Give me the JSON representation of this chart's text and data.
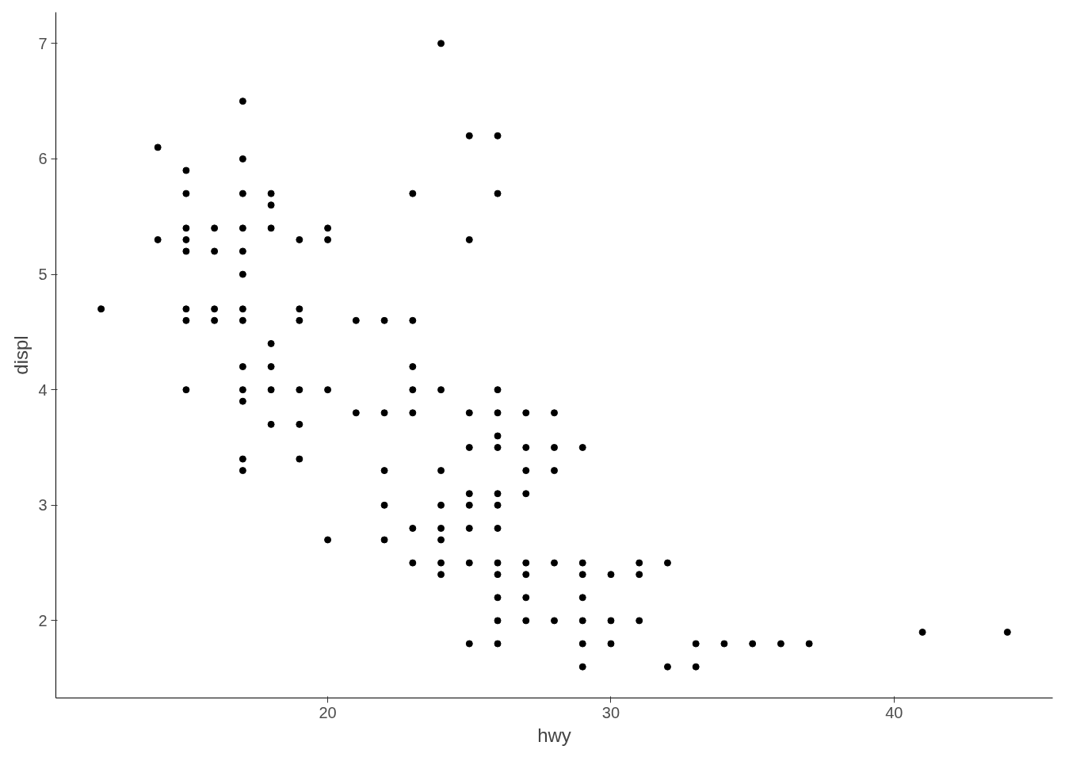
{
  "chart_data": {
    "type": "scatter",
    "xlabel": "hwy",
    "ylabel": "displ",
    "marker": "circle",
    "grid": false,
    "xlim": [
      10.4,
      45.6
    ],
    "ylim": [
      1.33,
      7.27
    ],
    "xticks": [
      20,
      30,
      40
    ],
    "yticks": [
      2,
      3,
      4,
      5,
      6,
      7
    ],
    "series": [
      {
        "color": "#000000",
        "x": [
          12,
          14,
          14,
          15,
          15,
          15,
          15,
          15,
          15,
          15,
          15,
          16,
          16,
          16,
          16,
          17,
          17,
          17,
          17,
          17,
          17,
          17,
          17,
          17,
          17,
          17,
          17,
          17,
          18,
          18,
          18,
          18,
          18,
          18,
          18,
          19,
          19,
          19,
          19,
          19,
          19,
          20,
          20,
          20,
          20,
          21,
          21,
          22,
          22,
          22,
          22,
          22,
          23,
          23,
          23,
          23,
          23,
          23,
          23,
          24,
          24,
          24,
          24,
          24,
          24,
          24,
          24,
          25,
          25,
          25,
          25,
          25,
          25,
          25,
          25,
          25,
          26,
          26,
          26,
          26,
          26,
          26,
          26,
          26,
          26,
          26,
          26,
          26,
          26,
          26,
          27,
          27,
          27,
          27,
          27,
          27,
          27,
          27,
          28,
          28,
          28,
          28,
          28,
          29,
          29,
          29,
          29,
          29,
          29,
          29,
          30,
          30,
          30,
          31,
          31,
          31,
          32,
          32,
          33,
          33,
          34,
          35,
          36,
          37,
          41,
          44
        ],
        "values": [
          4.7,
          6.1,
          5.3,
          5.9,
          5.7,
          5.4,
          5.3,
          5.2,
          4.7,
          4.6,
          4.0,
          5.4,
          5.2,
          4.7,
          4.6,
          6.5,
          6.0,
          5.7,
          5.4,
          5.2,
          5.0,
          4.7,
          4.6,
          4.2,
          4.0,
          3.9,
          3.4,
          3.3,
          5.7,
          5.6,
          5.4,
          4.4,
          4.2,
          4.0,
          3.7,
          5.3,
          4.7,
          4.6,
          4.0,
          3.7,
          3.4,
          5.4,
          5.3,
          4.0,
          2.7,
          4.6,
          3.8,
          4.6,
          3.8,
          3.3,
          3.0,
          2.7,
          5.7,
          4.6,
          4.2,
          4.0,
          3.8,
          2.8,
          2.5,
          7.0,
          4.0,
          3.3,
          3.0,
          2.8,
          2.7,
          2.5,
          2.4,
          6.2,
          5.3,
          3.8,
          3.5,
          3.1,
          3.0,
          2.8,
          2.5,
          1.8,
          6.2,
          5.7,
          4.0,
          3.8,
          3.6,
          3.5,
          3.1,
          3.0,
          2.8,
          2.5,
          2.4,
          2.2,
          2.0,
          1.8,
          3.8,
          3.5,
          3.3,
          3.1,
          2.5,
          2.4,
          2.2,
          2.0,
          3.8,
          3.5,
          3.3,
          2.5,
          2.0,
          3.5,
          2.5,
          2.4,
          2.2,
          2.0,
          1.8,
          1.6,
          2.4,
          2.0,
          1.8,
          2.5,
          2.4,
          2.0,
          2.5,
          1.6,
          1.8,
          1.6,
          1.8,
          1.8,
          1.8,
          1.8,
          1.9,
          1.9
        ]
      }
    ]
  }
}
